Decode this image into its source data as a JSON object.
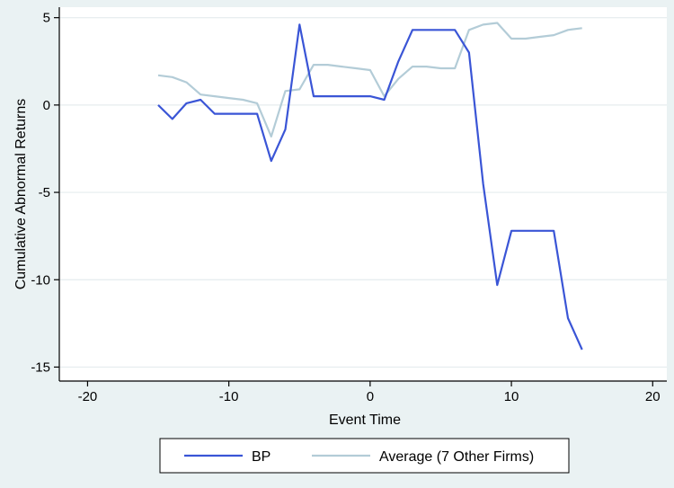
{
  "chart_data": {
    "type": "line",
    "title": "",
    "xlabel": "Event Time",
    "ylabel": "Cumulative Abnormal Returns",
    "xlim": [
      -22,
      21
    ],
    "ylim": [
      -15.8,
      5.6
    ],
    "xticks": [
      -20,
      -10,
      0,
      10,
      20
    ],
    "yticks": [
      -15,
      -10,
      -5,
      0,
      5
    ],
    "xtick_labels": [
      "-20",
      "-10",
      "0",
      "10",
      "20"
    ],
    "ytick_labels": [
      "-15",
      "-10",
      "-5",
      "0",
      "5"
    ],
    "grid": "horizontal",
    "legend_position": "bottom",
    "series": [
      {
        "name": "BP",
        "color": "#3a55d6",
        "points": [
          [
            -15,
            0.0
          ],
          [
            -14,
            -0.8
          ],
          [
            -13,
            0.1
          ],
          [
            -12,
            0.3
          ],
          [
            -11,
            -0.5
          ],
          [
            -10,
            -0.5
          ],
          [
            -9,
            -0.5
          ],
          [
            -8,
            -0.5
          ],
          [
            -7,
            -3.2
          ],
          [
            -6,
            -1.4
          ],
          [
            -5,
            4.6
          ],
          [
            -4,
            0.5
          ],
          [
            -3,
            0.5
          ],
          [
            -2,
            0.5
          ],
          [
            -1,
            0.5
          ],
          [
            0,
            0.5
          ],
          [
            1,
            0.3
          ],
          [
            2,
            2.5
          ],
          [
            3,
            4.3
          ],
          [
            4,
            4.3
          ],
          [
            5,
            4.3
          ],
          [
            6,
            4.3
          ],
          [
            7,
            3.0
          ],
          [
            8,
            -4.5
          ],
          [
            9,
            -10.3
          ],
          [
            10,
            -7.2
          ],
          [
            11,
            -7.2
          ],
          [
            12,
            -7.2
          ],
          [
            13,
            -7.2
          ],
          [
            14,
            -12.2
          ],
          [
            15,
            -14.0
          ]
        ]
      },
      {
        "name": "Average (7 Other Firms)",
        "color": "#b3ccd7",
        "points": [
          [
            -15,
            1.7
          ],
          [
            -14,
            1.6
          ],
          [
            -13,
            1.3
          ],
          [
            -12,
            0.6
          ],
          [
            -11,
            0.5
          ],
          [
            -10,
            0.4
          ],
          [
            -9,
            0.3
          ],
          [
            -8,
            0.1
          ],
          [
            -7,
            -1.8
          ],
          [
            -6,
            0.8
          ],
          [
            -5,
            0.9
          ],
          [
            -4,
            2.3
          ],
          [
            -3,
            2.3
          ],
          [
            -2,
            2.2
          ],
          [
            -1,
            2.1
          ],
          [
            0,
            2.0
          ],
          [
            1,
            0.5
          ],
          [
            2,
            1.5
          ],
          [
            3,
            2.2
          ],
          [
            4,
            2.2
          ],
          [
            5,
            2.1
          ],
          [
            6,
            2.1
          ],
          [
            7,
            4.3
          ],
          [
            8,
            4.6
          ],
          [
            9,
            4.7
          ],
          [
            10,
            3.8
          ],
          [
            11,
            3.8
          ],
          [
            12,
            3.9
          ],
          [
            13,
            4.0
          ],
          [
            14,
            4.3
          ],
          [
            15,
            4.4
          ]
        ]
      }
    ]
  },
  "colors": {
    "background": "#eaf2f3",
    "plot_area": "#ffffff",
    "grid": "#e5ecee",
    "axis": "#000000"
  }
}
